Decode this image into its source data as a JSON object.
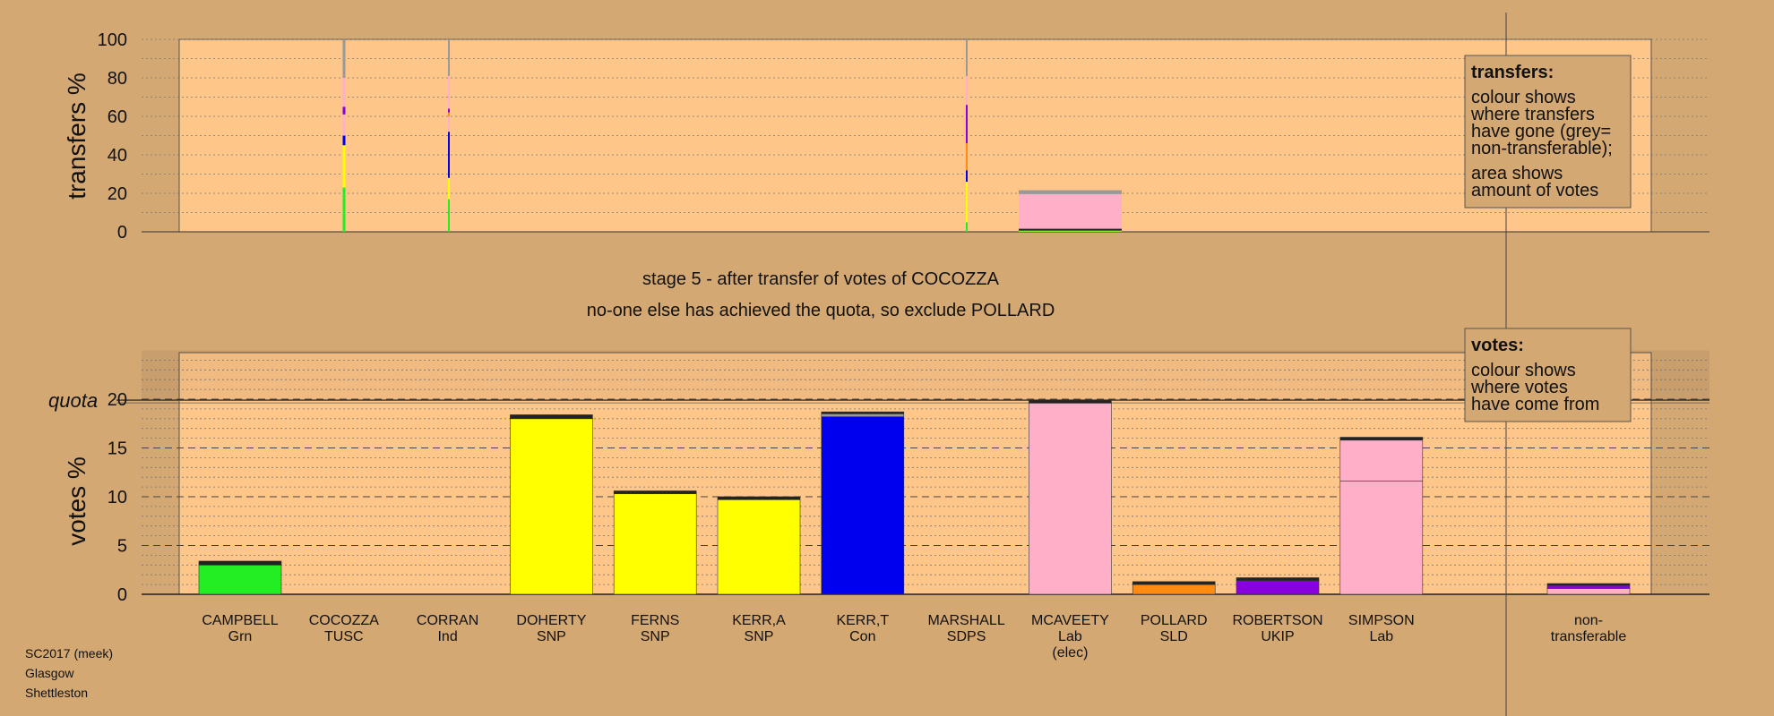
{
  "colors": {
    "background": "#d4a873",
    "panel": "#ffc68a",
    "legend_box": "#d4a873",
    "Grn": "#22ee22",
    "TUSC": "#ffaaaa",
    "Ind": "#dddddd",
    "SNP": "#ffff00",
    "Con": "#0000ee",
    "SDPS": "#ffbbbb",
    "Lab": "#ffb0c8",
    "SLD": "#ff8c10",
    "UKIP": "#8800dd",
    "nontransferable": "#999999",
    "dark": "#222222"
  },
  "stage_text": {
    "line1": "stage 5 - after transfer of votes of COCOZZA",
    "line2": "no-one else has achieved the quota, so exclude POLLARD"
  },
  "legend_transfers": {
    "heading": "transfers:",
    "lines": [
      "colour shows",
      "where transfers",
      "have gone (grey=",
      "non-transferable);"
    ],
    "lines2": [
      "area shows",
      "amount of votes"
    ]
  },
  "legend_votes": {
    "heading": "votes:",
    "lines": [
      "colour shows",
      "where votes",
      "have come from"
    ]
  },
  "source": {
    "line1": "SC2017 (meek)",
    "line2": "Glasgow",
    "line3": "Shettleston"
  },
  "chart_data": [
    {
      "type": "bar",
      "ylabel": "transfers %",
      "ylim": [
        0,
        100
      ],
      "yticks": [
        0,
        20,
        40,
        60,
        80,
        100
      ],
      "transfer_columns": [
        {
          "candidate_index": 0,
          "width": 0.03,
          "segments": [
            {
              "color": "Grn",
              "value": 23
            },
            {
              "color": "SNP",
              "value": 22
            },
            {
              "color": "Con",
              "value": 5
            },
            {
              "color": "Lab",
              "value": 11
            },
            {
              "color": "UKIP",
              "value": 4
            },
            {
              "color": "Lab",
              "value": 15
            },
            {
              "color": "nontransferable",
              "value": 20
            }
          ]
        },
        {
          "candidate_index": 1,
          "width": 0.02,
          "segments": [
            {
              "color": "Grn",
              "value": 17
            },
            {
              "color": "SNP",
              "value": 11
            },
            {
              "color": "Con",
              "value": 24
            },
            {
              "color": "Lab",
              "value": 8
            },
            {
              "color": "SLD",
              "value": 2
            },
            {
              "color": "UKIP",
              "value": 2
            },
            {
              "color": "Lab",
              "value": 17
            },
            {
              "color": "nontransferable",
              "value": 19
            }
          ]
        },
        {
          "candidate_index": 2,
          "width": 0.02,
          "segments": [
            {
              "color": "Grn",
              "value": 5
            },
            {
              "color": "SNP",
              "value": 21
            },
            {
              "color": "Con",
              "value": 6
            },
            {
              "color": "SLD",
              "value": 14
            },
            {
              "color": "UKIP",
              "value": 20
            },
            {
              "color": "Lab",
              "value": 15
            },
            {
              "color": "nontransferable",
              "value": 19
            }
          ]
        },
        {
          "candidate_index": 3,
          "width": 1.0,
          "segments": [
            {
              "color": "Grn",
              "value": 0.3
            },
            {
              "color": "SNP",
              "value": 0.3
            },
            {
              "color": "dark",
              "value": 1
            },
            {
              "color": "Lab",
              "value": 18
            },
            {
              "color": "nontransferable",
              "value": 2
            }
          ]
        }
      ]
    },
    {
      "type": "bar",
      "ylabel": "votes %",
      "ylim": [
        0,
        25
      ],
      "yticks": [
        0,
        5,
        10,
        15,
        20
      ],
      "quota": 19.9,
      "quota_label": "quota",
      "candidates": [
        {
          "name": "CAMPBELL",
          "party": "Grn",
          "extra": "",
          "color": "Grn",
          "segments": [
            {
              "color": "Grn",
              "value": 3.0
            },
            {
              "color": "dark",
              "value": 0.4
            }
          ]
        },
        {
          "name": "COCOZZA",
          "party": "TUSC",
          "extra": "",
          "color": "TUSC",
          "segments": []
        },
        {
          "name": "CORRAN",
          "party": "Ind",
          "extra": "",
          "color": "Ind",
          "segments": []
        },
        {
          "name": "DOHERTY",
          "party": "SNP",
          "extra": "",
          "color": "SNP",
          "segments": [
            {
              "color": "SNP",
              "value": 18.0
            },
            {
              "color": "dark",
              "value": 0.4
            }
          ]
        },
        {
          "name": "FERNS",
          "party": "SNP",
          "extra": "",
          "color": "SNP",
          "segments": [
            {
              "color": "SNP",
              "value": 10.3
            },
            {
              "color": "dark",
              "value": 0.3
            }
          ]
        },
        {
          "name": "KERR,A",
          "party": "SNP",
          "extra": "",
          "color": "SNP",
          "segments": [
            {
              "color": "SNP",
              "value": 9.7
            },
            {
              "color": "dark",
              "value": 0.3
            }
          ]
        },
        {
          "name": "KERR,T",
          "party": "Con",
          "extra": "",
          "color": "Con",
          "segments": [
            {
              "color": "Con",
              "value": 18.2
            },
            {
              "color": "nontransferable",
              "value": 0.3
            },
            {
              "color": "dark",
              "value": 0.2
            }
          ]
        },
        {
          "name": "MARSHALL",
          "party": "SDPS",
          "extra": "",
          "color": "SDPS",
          "segments": []
        },
        {
          "name": "MCAVEETY",
          "party": "Lab",
          "extra": "(elec)",
          "color": "Lab",
          "segments": [
            {
              "color": "Lab",
              "value": 19.6
            },
            {
              "color": "dark",
              "value": 0.3
            }
          ]
        },
        {
          "name": "POLLARD",
          "party": "SLD",
          "extra": "",
          "color": "SLD",
          "segments": [
            {
              "color": "SLD",
              "value": 1.0
            },
            {
              "color": "dark",
              "value": 0.3
            }
          ]
        },
        {
          "name": "ROBERTSON",
          "party": "UKIP",
          "extra": "",
          "color": "UKIP",
          "segments": [
            {
              "color": "UKIP",
              "value": 1.4
            },
            {
              "color": "dark",
              "value": 0.3
            }
          ]
        },
        {
          "name": "SIMPSON",
          "party": "Lab",
          "extra": "",
          "color": "Lab",
          "segments": [
            {
              "color": "Lab",
              "value": 11.6
            },
            {
              "color": "Lab",
              "value": 4.2
            },
            {
              "color": "dark",
              "value": 0.3
            }
          ]
        }
      ],
      "nontransferable": {
        "name": "non-",
        "name2": "transferable",
        "segments": [
          {
            "color": "Lab",
            "value": 0.6
          },
          {
            "color": "UKIP",
            "value": 0.3
          },
          {
            "color": "dark",
            "value": 0.2
          }
        ]
      }
    }
  ]
}
